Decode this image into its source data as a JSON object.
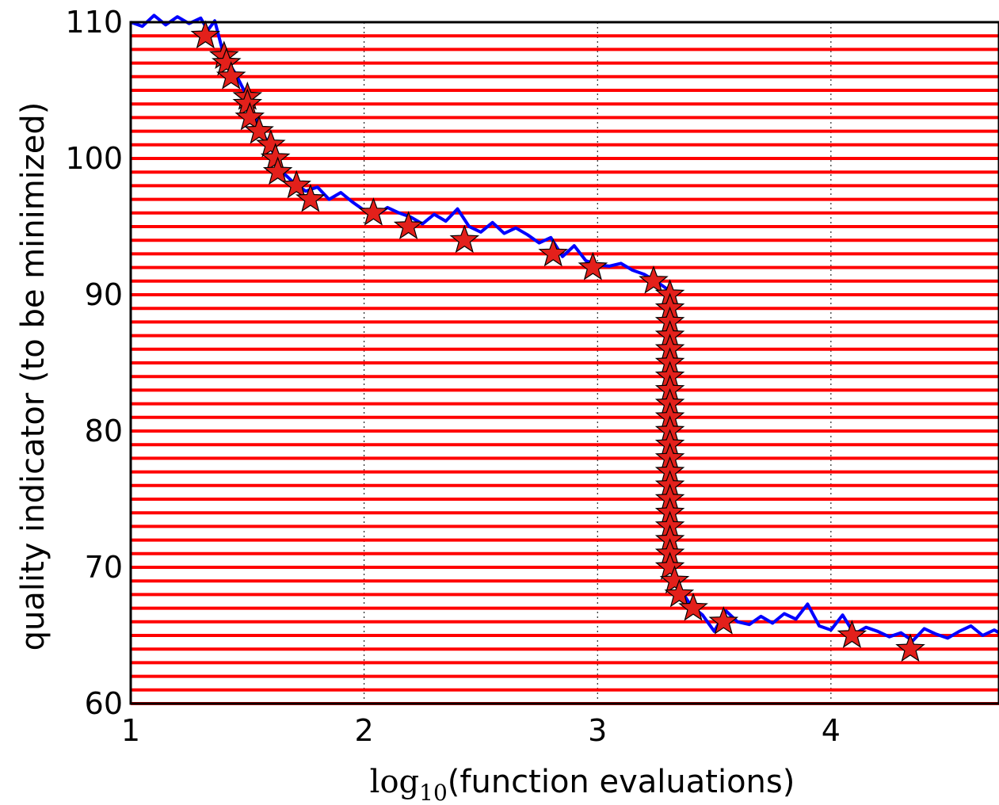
{
  "chart_data": {
    "type": "line",
    "xlabel_prefix": "log",
    "xlabel_subscript": "10",
    "xlabel_suffix": "(function evaluations)",
    "ylabel": "quality indicator (to be minimized)",
    "xlim": [
      1,
      4.72
    ],
    "ylim": [
      60,
      110
    ],
    "x_ticks": [
      "1",
      "2",
      "3",
      "4"
    ],
    "y_ticks": [
      "60",
      "70",
      "80",
      "90",
      "100",
      "110"
    ],
    "grid": true,
    "colors": {
      "noisy_line": "#0000ff",
      "levels": "#ff0000",
      "markers_fill": "#e3201b",
      "markers_edge": "#000000",
      "grid": "#000000"
    },
    "series": [
      {
        "kind": "noisy-line",
        "x": [
          1.0,
          1.05,
          1.1,
          1.15,
          1.2,
          1.25,
          1.3,
          1.33,
          1.36,
          1.4,
          1.45,
          1.5,
          1.55,
          1.6,
          1.65,
          1.7,
          1.75,
          1.8,
          1.85,
          1.9,
          1.95,
          2.0,
          2.05,
          2.1,
          2.15,
          2.2,
          2.25,
          2.3,
          2.35,
          2.4,
          2.45,
          2.5,
          2.55,
          2.6,
          2.65,
          2.7,
          2.75,
          2.8,
          2.85,
          2.9,
          2.95,
          3.0,
          3.05,
          3.1,
          3.15,
          3.2,
          3.25,
          3.3,
          3.31,
          3.32,
          3.35,
          3.4,
          3.45,
          3.5,
          3.55,
          3.6,
          3.65,
          3.7,
          3.75,
          3.8,
          3.85,
          3.9,
          3.95,
          4.0,
          4.05,
          4.1,
          4.15,
          4.2,
          4.25,
          4.3,
          4.35,
          4.4,
          4.45,
          4.5,
          4.55,
          4.6,
          4.65,
          4.7,
          4.72
        ],
        "y": [
          110.0,
          109.7,
          110.5,
          109.8,
          110.4,
          109.9,
          110.3,
          109.4,
          110.1,
          107.5,
          106.2,
          104.5,
          102.3,
          100.8,
          99.0,
          98.2,
          97.6,
          97.9,
          97.0,
          97.5,
          96.8,
          96.2,
          95.8,
          96.4,
          96.0,
          95.7,
          95.2,
          95.9,
          95.4,
          96.3,
          95.0,
          94.6,
          95.3,
          94.5,
          94.9,
          94.4,
          93.8,
          94.2,
          92.8,
          93.6,
          92.5,
          92.2,
          92.1,
          92.3,
          91.8,
          91.5,
          91.0,
          90.4,
          80.0,
          70.0,
          68.5,
          67.2,
          66.5,
          65.3,
          66.8,
          66.0,
          65.8,
          66.4,
          65.9,
          66.6,
          66.2,
          67.3,
          65.7,
          65.4,
          66.5,
          65.1,
          65.6,
          65.3,
          64.9,
          65.2,
          64.6,
          65.5,
          65.1,
          64.8,
          65.3,
          65.7,
          65.0,
          65.4,
          65.2
        ]
      },
      {
        "kind": "level-lines",
        "levels": [
          109,
          108,
          107,
          106,
          105,
          104,
          103,
          102,
          101,
          100,
          99,
          98,
          97,
          96,
          95,
          94,
          93,
          92,
          91,
          90,
          89,
          88,
          87,
          86,
          85,
          84,
          83,
          82,
          81,
          80,
          79,
          78,
          77,
          76,
          75,
          74,
          73,
          72,
          71,
          70,
          69,
          68,
          67,
          66,
          65,
          64,
          63,
          62,
          61,
          60
        ]
      },
      {
        "kind": "star-markers",
        "x": [
          1.32,
          1.4,
          1.41,
          1.43,
          1.5,
          1.5,
          1.51,
          1.55,
          1.6,
          1.62,
          1.63,
          1.71,
          1.77,
          2.04,
          2.19,
          2.43,
          2.81,
          2.98,
          3.24,
          3.31,
          3.31,
          3.31,
          3.31,
          3.31,
          3.31,
          3.31,
          3.31,
          3.31,
          3.31,
          3.31,
          3.31,
          3.31,
          3.31,
          3.31,
          3.31,
          3.31,
          3.31,
          3.31,
          3.31,
          3.31,
          3.33,
          3.35,
          3.41,
          3.54,
          4.09,
          4.34
        ],
        "y": [
          109,
          107.5,
          107,
          106,
          104.5,
          104,
          103,
          102,
          101,
          100,
          99,
          98,
          97,
          96,
          95,
          94,
          93,
          92,
          91,
          90,
          89,
          88,
          87,
          86,
          85,
          84,
          83,
          82,
          81,
          80,
          79,
          78,
          77,
          76,
          75,
          74,
          73,
          72,
          71,
          70,
          69,
          68,
          67,
          66,
          65,
          64
        ]
      }
    ]
  }
}
